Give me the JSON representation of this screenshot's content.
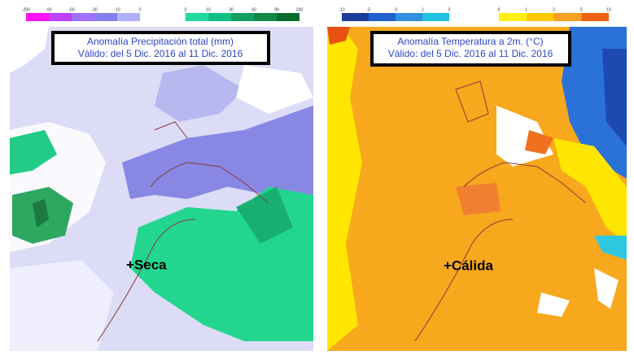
{
  "panels": [
    {
      "title_line1": "Anomalía Precipitación total (mm)",
      "title_line2": "Válido: del 5 Dic. 2016 al 11 Dic. 2016",
      "legend_negative": [
        "-200",
        "-90",
        "-60",
        "-30",
        "-10",
        "0"
      ],
      "legend_positive": [
        "0",
        "10",
        "30",
        "60",
        "90",
        "200"
      ],
      "annotation": "+Seca"
    },
    {
      "title_line1": "Anomalía Temperatura a 2m. (°C)",
      "title_line2": "Válido: del 5 Dic. 2016 al 11 Dic. 2016",
      "legend_negative": [
        "-10",
        "-5",
        "-3",
        "-1",
        "0"
      ],
      "legend_positive": [
        "0",
        "1",
        "3",
        "5",
        "10"
      ],
      "annotation": "+Cálida"
    }
  ]
}
